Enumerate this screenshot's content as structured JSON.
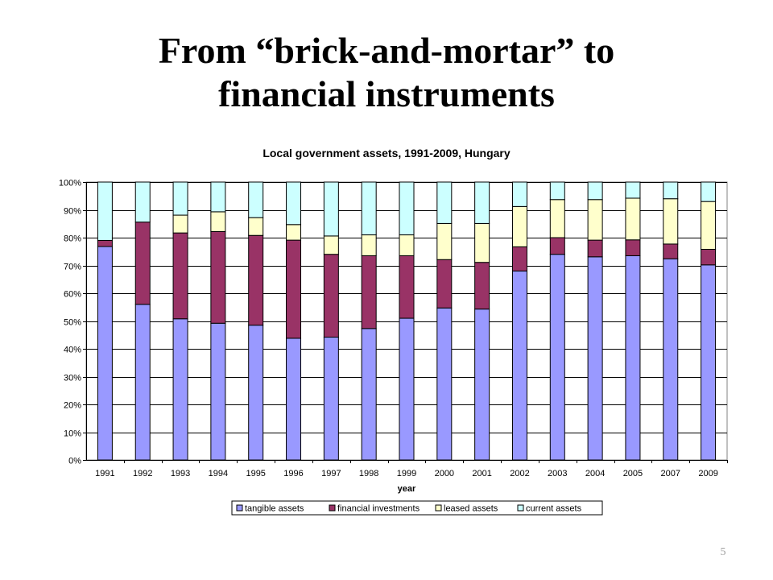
{
  "slide": {
    "title_line1": "From “brick-and-mortar” to",
    "title_line2": "financial instruments",
    "page_number": "5"
  },
  "colors": {
    "tangible": "#9999FF",
    "financial": "#993366",
    "leased": "#FFFFCC",
    "current": "#CCFFFF",
    "gridline": "#000000",
    "plot_border": "#808080"
  },
  "chart_data": {
    "type": "bar",
    "stacked": true,
    "percent": true,
    "title": "Local government assets, 1991-2009, Hungary",
    "xlabel": "year",
    "ylabel": "",
    "ylim": [
      0,
      100
    ],
    "ytick_labels": [
      "0%",
      "10%",
      "20%",
      "30%",
      "40%",
      "50%",
      "60%",
      "70%",
      "80%",
      "90%",
      "100%"
    ],
    "grid": true,
    "legend_position": "bottom",
    "categories": [
      "1991",
      "1992",
      "1993",
      "1994",
      "1995",
      "1996",
      "1997",
      "1998",
      "1999",
      "2000",
      "2001",
      "2002",
      "2003",
      "2004",
      "2005",
      "2007",
      "2009"
    ],
    "series": [
      {
        "name": "tangible assets",
        "values": [
          76.8,
          56.0,
          50.8,
          49.2,
          48.5,
          43.8,
          44.2,
          47.3,
          51.0,
          54.7,
          54.3,
          68.0,
          74.0,
          73.1,
          73.5,
          72.4,
          70.2
        ]
      },
      {
        "name": "financial investments",
        "values": [
          2.2,
          29.6,
          30.9,
          33.0,
          32.3,
          35.3,
          29.8,
          26.2,
          22.5,
          17.4,
          16.8,
          8.7,
          6.0,
          6.0,
          5.7,
          5.3,
          5.6
        ]
      },
      {
        "name": "leased assets",
        "values": [
          0.0,
          0.0,
          6.4,
          7.1,
          6.4,
          5.6,
          6.6,
          7.5,
          7.5,
          13.0,
          14.0,
          14.5,
          13.7,
          14.6,
          15.0,
          16.3,
          17.2
        ]
      },
      {
        "name": "current assets",
        "values": [
          21.0,
          14.4,
          11.9,
          10.7,
          12.8,
          15.3,
          19.4,
          19.0,
          19.0,
          14.9,
          14.9,
          8.8,
          6.3,
          6.3,
          5.8,
          6.0,
          7.0
        ]
      }
    ]
  }
}
